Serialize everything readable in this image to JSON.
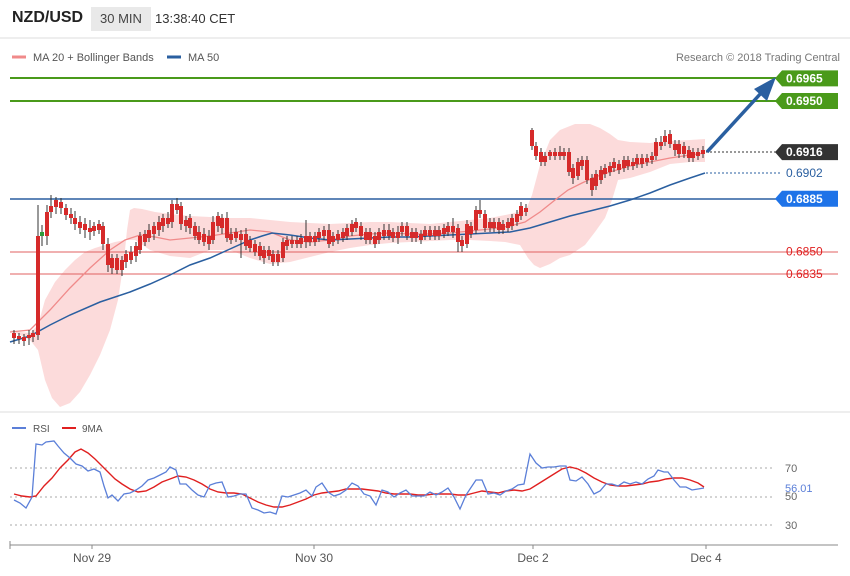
{
  "header": {
    "pair": "NZD/USD",
    "timeframe": "30 MIN",
    "time": "13:38:40 CET"
  },
  "legend": {
    "ma_bb": "MA 20 + Bollinger Bands",
    "ma50": "MA 50",
    "credit": "Research © 2018 Trading Central"
  },
  "rsi_legend": {
    "rsi": "RSI",
    "ma9": "9MA"
  },
  "colors": {
    "green": "#4a9a1a",
    "blue": "#2a5fa0",
    "red": "#e06060",
    "band": "#fcd5d5",
    "rsi": "#5b7fd8",
    "ma9": "#e02020"
  },
  "chart_data": [
    {
      "type": "candlestick",
      "ylim": [
        0.6775,
        0.6978
      ],
      "levels": [
        {
          "value": 0.6965,
          "label": "0.6965",
          "kind": "resistance"
        },
        {
          "value": 0.695,
          "label": "0.6950",
          "kind": "resistance"
        },
        {
          "value": 0.6916,
          "label": "0.6916",
          "kind": "last-price"
        },
        {
          "value": 0.6902,
          "label": "0.6902",
          "kind": "ma50"
        },
        {
          "value": 0.6885,
          "label": "0.6885",
          "kind": "pivot"
        },
        {
          "value": 0.685,
          "label": "0.6850",
          "kind": "support"
        },
        {
          "value": 0.6835,
          "label": "0.6835",
          "kind": "support"
        }
      ],
      "x_ticks": [
        "Nov 29",
        "Nov 30",
        "Dec 2",
        "Dec 4"
      ],
      "projection": {
        "from": 0.6916,
        "to": 0.6962
      }
    },
    {
      "type": "line",
      "ylim": [
        20,
        80
      ],
      "y_ticks": [
        30,
        50,
        70
      ],
      "series": [
        {
          "name": "RSI",
          "last": "56.01"
        },
        {
          "name": "9MA"
        }
      ]
    }
  ]
}
